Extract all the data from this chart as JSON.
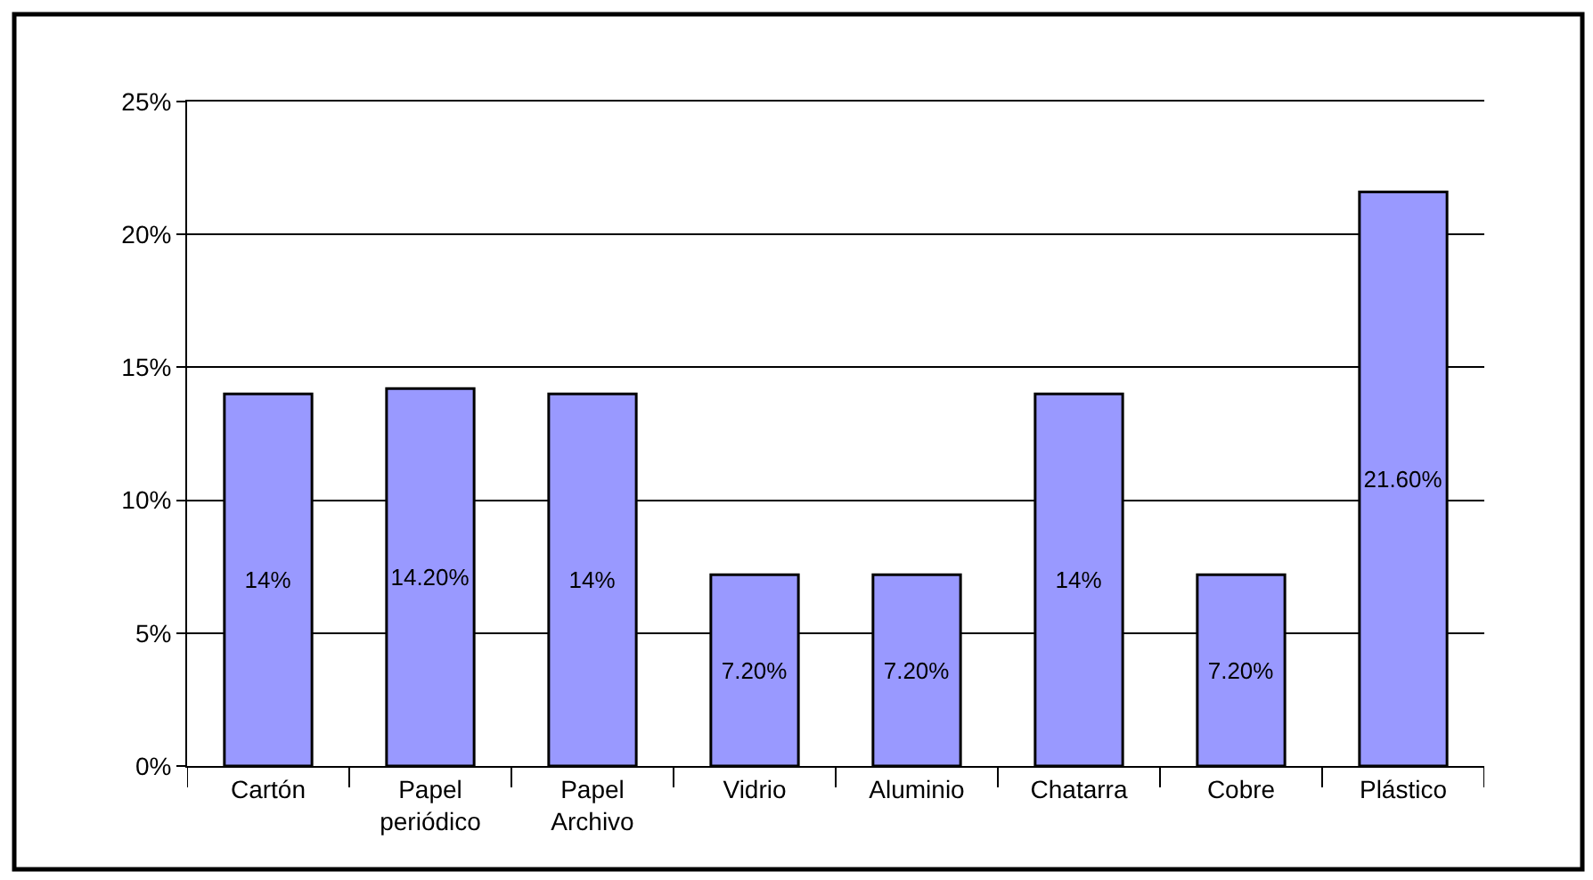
{
  "chart_data": {
    "type": "bar",
    "categories": [
      "Cartón",
      "Papel periódico",
      "Papel Archivo",
      "Vidrio",
      "Aluminio",
      "Chatarra",
      "Cobre",
      "Plástico"
    ],
    "series": [
      {
        "color": "#9999ff",
        "values": [
          14,
          14.2,
          14,
          7.2,
          7.2,
          14,
          7.2,
          21.6
        ],
        "value_labels": [
          "14%",
          "14.20%",
          "14%",
          "7.20%",
          "7.20%",
          "14%",
          "7.20%",
          "21.60%"
        ]
      }
    ],
    "ylim": [
      0,
      25
    ],
    "yticks": [
      {
        "value": 0,
        "label": "0%"
      },
      {
        "value": 5,
        "label": "5%"
      },
      {
        "value": 10,
        "label": "10%"
      },
      {
        "value": 15,
        "label": "15%"
      },
      {
        "value": 20,
        "label": "20%"
      },
      {
        "value": 25,
        "label": "25%"
      }
    ],
    "grid": "y"
  }
}
